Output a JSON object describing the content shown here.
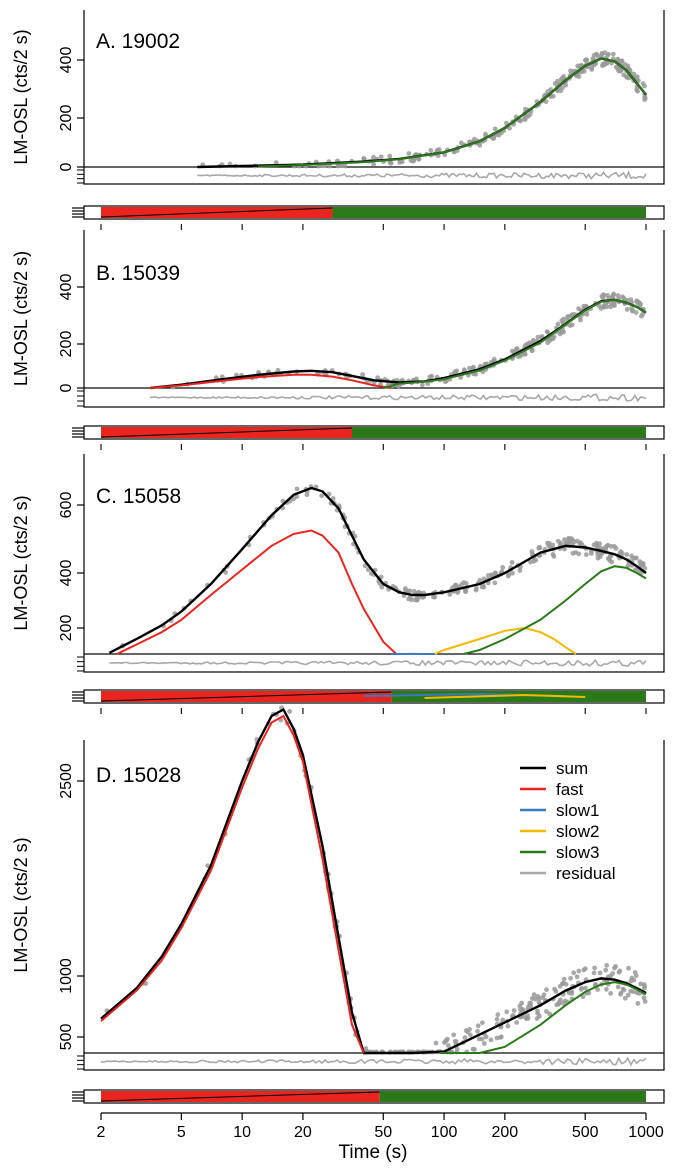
{
  "figure": {
    "xlabel": "Time (s)",
    "x_scale": "log",
    "xlim": [
      2,
      1000
    ],
    "x_ticks": [
      "2",
      "5",
      "10",
      "20",
      "50",
      "100",
      "200",
      "500",
      "1000"
    ],
    "ylabel": "LM-OSL (cts/2 s)"
  },
  "legend": {
    "placement": "top-right of panel D",
    "entries": [
      {
        "label": "sum",
        "color": "#000000"
      },
      {
        "label": "fast",
        "color": "#e8251f"
      },
      {
        "label": "slow1",
        "color": "#3a78c0"
      },
      {
        "label": "slow2",
        "color": "#f5b800"
      },
      {
        "label": "slow3",
        "color": "#2a7a1a"
      },
      {
        "label": "residual",
        "color": "#a8a8a8"
      }
    ]
  },
  "chart_data": [
    {
      "type": "line",
      "title": "A. 19002",
      "ylabel": "LM-OSL (cts/2 s)",
      "xlabel": "Time (s)",
      "x_scale": "log",
      "xlim": [
        2,
        1000
      ],
      "ylim": [
        0,
        460
      ],
      "y_ticks": [
        "0",
        "200",
        "400"
      ],
      "series": [
        {
          "name": "sum",
          "color": "#000000",
          "x": [
            6,
            10,
            20,
            40,
            60,
            100,
            150,
            200,
            300,
            400,
            500,
            600,
            700,
            800,
            900,
            1000
          ],
          "y": [
            0,
            4,
            10,
            22,
            33,
            60,
            105,
            160,
            255,
            330,
            380,
            405,
            395,
            365,
            320,
            280
          ]
        },
        {
          "name": "slow3",
          "color": "#2a7a1a",
          "x": [
            12,
            20,
            40,
            60,
            100,
            150,
            200,
            300,
            400,
            500,
            600,
            700,
            800,
            900,
            1000
          ],
          "y": [
            2,
            8,
            20,
            32,
            60,
            105,
            160,
            255,
            330,
            380,
            405,
            395,
            365,
            320,
            280
          ]
        }
      ],
      "residual_band": {
        "color": "#a8a8a8"
      },
      "proportion_bar": [
        {
          "name": "fast",
          "color": "#e8251f"
        },
        {
          "name": "slow3",
          "color": "#2a7a1a"
        }
      ]
    },
    {
      "type": "line",
      "title": "B. 15039",
      "ylabel": "LM-OSL (cts/2 s)",
      "xlabel": "Time (s)",
      "x_scale": "log",
      "xlim": [
        2,
        1000
      ],
      "ylim": [
        0,
        460
      ],
      "y_ticks": [
        "0",
        "200",
        "400"
      ],
      "series": [
        {
          "name": "sum",
          "color": "#000000",
          "x": [
            3.5,
            5,
            8,
            12,
            18,
            22,
            28,
            35,
            45,
            60,
            80,
            100,
            150,
            200,
            300,
            400,
            500,
            600,
            700,
            800,
            900,
            1000
          ],
          "y": [
            0,
            15,
            40,
            60,
            75,
            78,
            72,
            55,
            35,
            25,
            30,
            45,
            85,
            130,
            210,
            270,
            320,
            350,
            355,
            345,
            330,
            310
          ]
        },
        {
          "name": "fast",
          "color": "#e8251f",
          "x": [
            3.5,
            5,
            8,
            12,
            18,
            22,
            28,
            35,
            45,
            55
          ],
          "y": [
            0,
            12,
            33,
            50,
            60,
            60,
            52,
            35,
            12,
            0
          ]
        },
        {
          "name": "slow3",
          "color": "#2a7a1a",
          "x": [
            50,
            60,
            80,
            100,
            150,
            200,
            300,
            400,
            500,
            600,
            700,
            800,
            900,
            1000
          ],
          "y": [
            0,
            20,
            28,
            40,
            80,
            125,
            205,
            268,
            318,
            348,
            355,
            345,
            330,
            310
          ]
        }
      ],
      "residual_band": {
        "color": "#a8a8a8"
      },
      "proportion_bar": [
        {
          "name": "fast",
          "color": "#e8251f"
        },
        {
          "name": "slow3",
          "color": "#2a7a1a"
        }
      ]
    },
    {
      "type": "line",
      "title": "C. 15058",
      "ylabel": "LM-OSL (cts/2 s)",
      "xlabel": "Time (s)",
      "x_scale": "log",
      "xlim": [
        2,
        1000
      ],
      "ylim": [
        100,
        700
      ],
      "y_ticks": [
        "200",
        "400",
        "600"
      ],
      "series": [
        {
          "name": "sum",
          "color": "#000000",
          "x": [
            2.2,
            3,
            4,
            5,
            7,
            10,
            14,
            18,
            22,
            25,
            30,
            35,
            40,
            50,
            60,
            70,
            80,
            100,
            150,
            200,
            300,
            400,
            500,
            600,
            700,
            800,
            900,
            1000
          ],
          "y": [
            110,
            160,
            210,
            260,
            360,
            470,
            570,
            630,
            650,
            640,
            590,
            510,
            440,
            360,
            330,
            320,
            320,
            330,
            360,
            400,
            460,
            480,
            475,
            465,
            455,
            440,
            420,
            400
          ]
        },
        {
          "name": "fast",
          "color": "#e8251f",
          "x": [
            2.4,
            3,
            4,
            5,
            7,
            10,
            14,
            18,
            22,
            25,
            30,
            35,
            40,
            50,
            58
          ],
          "y": [
            100,
            140,
            185,
            230,
            320,
            410,
            480,
            515,
            525,
            510,
            460,
            360,
            270,
            150,
            100
          ]
        },
        {
          "name": "slow1",
          "color": "#3a78c0",
          "x": [
            55,
            60,
            70,
            80,
            90
          ],
          "y": [
            100,
            104,
            106,
            104,
            100
          ]
        },
        {
          "name": "slow2",
          "color": "#f5b800",
          "x": [
            90,
            100,
            150,
            200,
            250,
            300,
            350,
            400,
            450
          ],
          "y": [
            100,
            120,
            160,
            190,
            200,
            185,
            160,
            130,
            100
          ]
        },
        {
          "name": "slow3",
          "color": "#2a7a1a",
          "x": [
            125,
            150,
            200,
            300,
            400,
            500,
            600,
            700,
            800,
            900,
            1000
          ],
          "y": [
            100,
            120,
            160,
            230,
            300,
            360,
            405,
            420,
            415,
            400,
            380
          ]
        }
      ],
      "residual_band": {
        "color": "#a8a8a8"
      },
      "proportion_bar": [
        {
          "name": "fast",
          "color": "#e8251f"
        },
        {
          "name": "slow1",
          "color": "#3a78c0"
        },
        {
          "name": "slow2",
          "color": "#f5b800"
        },
        {
          "name": "slow3",
          "color": "#2a7a1a"
        }
      ]
    },
    {
      "type": "line",
      "title": "D. 15028",
      "ylabel": "LM-OSL (cts/2 s)",
      "xlabel": "Time (s)",
      "x_scale": "log",
      "xlim": [
        2,
        1000
      ],
      "ylim": [
        180,
        3500
      ],
      "y_ticks": [
        "500",
        "1000",
        "2500"
      ],
      "series": [
        {
          "name": "sum",
          "color": "#000000",
          "x": [
            2,
            3,
            4,
            5,
            7,
            10,
            12,
            14,
            16,
            18,
            20,
            25,
            30,
            35,
            40,
            45,
            50,
            60,
            70,
            100,
            150,
            200,
            300,
            400,
            500,
            600,
            700,
            800,
            900,
            1000
          ],
          "y": [
            650,
            900,
            1150,
            1400,
            1850,
            2500,
            2800,
            3000,
            3050,
            2900,
            2700,
            2000,
            1300,
            700,
            350,
            220,
            210,
            230,
            270,
            380,
            520,
            620,
            760,
            880,
            950,
            980,
            970,
            940,
            900,
            860
          ]
        },
        {
          "name": "fast",
          "color": "#e8251f",
          "x": [
            2,
            3,
            4,
            5,
            7,
            10,
            12,
            14,
            16,
            18,
            20,
            25,
            30,
            35,
            40
          ],
          "y": [
            630,
            880,
            1120,
            1370,
            1810,
            2450,
            2750,
            2950,
            3000,
            2850,
            2650,
            1900,
            1200,
            600,
            180
          ]
        },
        {
          "name": "slow3",
          "color": "#2a7a1a",
          "x": [
            95,
            120,
            150,
            200,
            300,
            400,
            500,
            600,
            700,
            800,
            900,
            1000
          ],
          "y": [
            180,
            230,
            300,
            420,
            600,
            760,
            870,
            930,
            950,
            930,
            890,
            850
          ]
        }
      ],
      "residual_band": {
        "color": "#a8a8a8"
      },
      "proportion_bar": [
        {
          "name": "fast",
          "color": "#e8251f"
        },
        {
          "name": "slow3",
          "color": "#2a7a1a"
        }
      ]
    }
  ]
}
